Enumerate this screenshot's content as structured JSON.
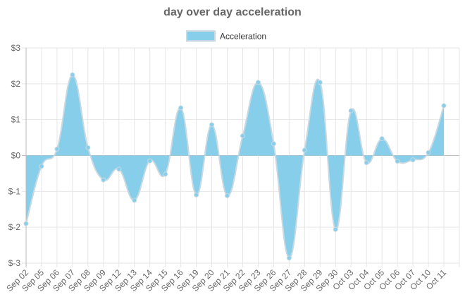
{
  "chart_data": {
    "type": "area",
    "title": "day over day acceleration",
    "categories": [
      "Sep 02",
      "Sep 05",
      "Sep 06",
      "Sep 07",
      "Sep 08",
      "Sep 09",
      "Sep 12",
      "Sep 13",
      "Sep 14",
      "Sep 15",
      "Sep 16",
      "Sep 19",
      "Sep 20",
      "Sep 21",
      "Sep 22",
      "Sep 23",
      "Sep 26",
      "Sep 27",
      "Sep 28",
      "Sep 29",
      "Sep 30",
      "Oct 03",
      "Oct 04",
      "Oct 05",
      "Oct 06",
      "Oct 07",
      "Oct 10",
      "Oct 11"
    ],
    "series": [
      {
        "name": "Acceleration",
        "color": "#87ceeb",
        "values": [
          -1.9,
          -0.3,
          0.18,
          2.25,
          0.22,
          -0.68,
          -0.38,
          -1.25,
          -0.15,
          -0.52,
          1.33,
          -1.1,
          0.86,
          -1.12,
          0.55,
          2.04,
          0.33,
          -2.86,
          0.15,
          2.04,
          -2.06,
          1.25,
          -0.2,
          0.47,
          -0.16,
          -0.12,
          0.08,
          1.39
        ]
      }
    ],
    "ylim": [
      -3,
      3
    ],
    "yticks": [
      {
        "value": -3,
        "label": "$-3"
      },
      {
        "value": -2,
        "label": "$-2"
      },
      {
        "value": -1,
        "label": "$-1"
      },
      {
        "value": 0,
        "label": "$0"
      },
      {
        "value": 1,
        "label": "$1"
      },
      {
        "value": 2,
        "label": "$2"
      },
      {
        "value": 3,
        "label": "$3"
      }
    ],
    "grid": true
  }
}
